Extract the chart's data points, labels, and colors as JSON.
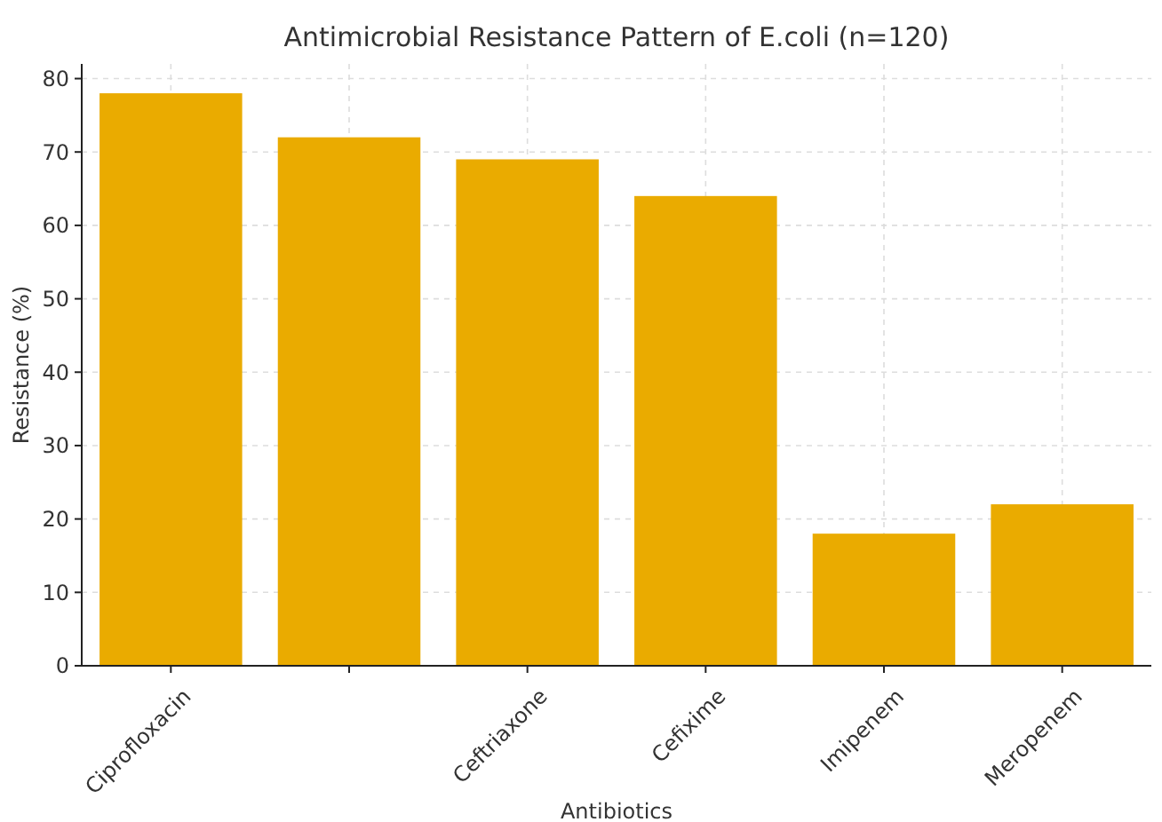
{
  "chart_data": {
    "type": "bar",
    "title": "Antimicrobial Resistance Pattern of E.coli (n=120)",
    "xlabel": "Antibiotics",
    "ylabel": "Resistance (%)",
    "categories": [
      "Ciprofloxacin",
      null,
      "Ceftriaxone",
      "Cefixime",
      "Imipenem",
      "Meropenem"
    ],
    "values": [
      78,
      72,
      69,
      64,
      18,
      22
    ],
    "color": "#eaab00",
    "ylim": [
      0,
      82
    ],
    "yticks": [
      0,
      10,
      20,
      30,
      40,
      50,
      60,
      70,
      80
    ],
    "grid": true
  }
}
